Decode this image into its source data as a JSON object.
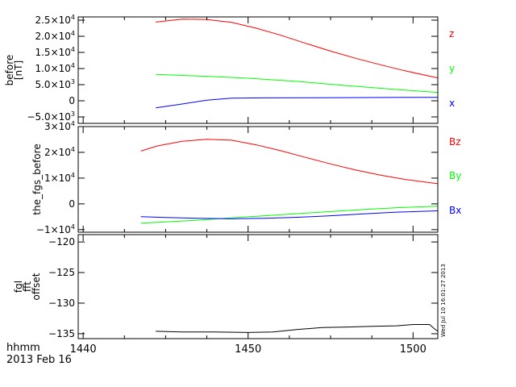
{
  "chart_data": [
    {
      "type": "line",
      "ylabel_lines": [
        "before",
        "[nT]"
      ],
      "ylim": [
        -7000,
        26000
      ],
      "yticks": [
        {
          "value": 25000,
          "label": "2.5×10",
          "exp": "4"
        },
        {
          "value": 20000,
          "label": "2.0×10",
          "exp": "4"
        },
        {
          "value": 15000,
          "label": "1.5×10",
          "exp": "4"
        },
        {
          "value": 10000,
          "label": "1.0×10",
          "exp": "4"
        },
        {
          "value": 5000,
          "label": "5.0×10",
          "exp": "3"
        },
        {
          "value": 0,
          "label": "0",
          "exp": ""
        },
        {
          "value": -5000,
          "label": "−5.0×10",
          "exp": "3"
        }
      ],
      "series": [
        {
          "name": "z",
          "color": "#ff0000",
          "x": [
            1444.4,
            1446,
            1447.5,
            1449,
            1450.5,
            1452,
            1453.5,
            1455,
            1456.5,
            1458,
            1459.5,
            1461.5
          ],
          "values": [
            24400,
            25300,
            25200,
            24300,
            22500,
            20300,
            17800,
            15400,
            13200,
            11200,
            9300,
            7100
          ]
        },
        {
          "name": "y",
          "color": "#00ff00",
          "x": [
            1444.4,
            1447,
            1450,
            1453,
            1456,
            1459,
            1461.5
          ],
          "values": [
            8200,
            7700,
            7000,
            6000,
            4700,
            3500,
            2600
          ]
        },
        {
          "name": "x",
          "color": "#0000ff",
          "x": [
            1444.4,
            1446,
            1447.5,
            1449,
            1451,
            1454,
            1457,
            1460,
            1461.5
          ],
          "values": [
            -2200,
            -1000,
            200,
            800,
            900,
            950,
            1000,
            1050,
            1050
          ]
        }
      ]
    },
    {
      "type": "line",
      "ylabel": "the_fgs_before",
      "ylim": [
        -11000,
        30000
      ],
      "yticks": [
        {
          "value": 30000,
          "label": "3×10",
          "exp": "4"
        },
        {
          "value": 20000,
          "label": "2×10",
          "exp": "4"
        },
        {
          "value": 10000,
          "label": "1×10",
          "exp": "4"
        },
        {
          "value": 0,
          "label": "0",
          "exp": ""
        },
        {
          "value": -10000,
          "label": "−1×10",
          "exp": "4"
        }
      ],
      "series": [
        {
          "name": "Bz",
          "color": "#ff0000",
          "x": [
            1443.5,
            1444.5,
            1446,
            1447.5,
            1449,
            1450.5,
            1452,
            1453.5,
            1455,
            1456.5,
            1458,
            1459.5,
            1461.5
          ],
          "values": [
            20500,
            22500,
            24300,
            25100,
            24700,
            22900,
            20600,
            18000,
            15500,
            13200,
            11200,
            9500,
            7800
          ]
        },
        {
          "name": "By",
          "color": "#00ff00",
          "x": [
            1443.5,
            1445,
            1447,
            1449,
            1451,
            1453,
            1455,
            1457,
            1459,
            1461.5
          ],
          "values": [
            -7500,
            -7000,
            -6300,
            -5400,
            -4600,
            -3800,
            -3000,
            -2200,
            -1500,
            -900
          ]
        },
        {
          "name": "Bx",
          "color": "#0000ff",
          "x": [
            1443.5,
            1445,
            1447,
            1449,
            1451,
            1453,
            1455,
            1457,
            1459,
            1461.5
          ],
          "values": [
            -5000,
            -5300,
            -5600,
            -5800,
            -5600,
            -5200,
            -4600,
            -3900,
            -3200,
            -2700
          ]
        }
      ]
    },
    {
      "type": "line",
      "ylabel_lines": [
        "fgl",
        "fft",
        "offset"
      ],
      "ylim": [
        -135.8,
        -118.8
      ],
      "yticks": [
        {
          "value": -120,
          "label": "−120",
          "exp": ""
        },
        {
          "value": -125,
          "label": "−125",
          "exp": ""
        },
        {
          "value": -130,
          "label": "−130",
          "exp": ""
        },
        {
          "value": -135,
          "label": "−135",
          "exp": ""
        }
      ],
      "series": [
        {
          "name": "",
          "color": "#000000",
          "x": [
            1444.4,
            1446,
            1448,
            1450,
            1451.5,
            1453,
            1454.5,
            1456,
            1457.5,
            1459,
            1460,
            1461,
            1461.3,
            1461.5
          ],
          "values": [
            -134.6,
            -134.7,
            -134.7,
            -134.8,
            -134.7,
            -134.3,
            -134.0,
            -133.9,
            -133.8,
            -133.7,
            -133.5,
            -133.5,
            -134.2,
            -134.6
          ]
        }
      ]
    }
  ],
  "x_axis": {
    "xlim": [
      1439.7,
      1461.5
    ],
    "major_ticks": [
      1440,
      1450,
      1460
    ],
    "major_labels": [
      "1440",
      "1450",
      "1500"
    ],
    "row1_label": "hhmm",
    "row2_label": "2013 Feb 16"
  },
  "timestamp": "Wed Jul 10 16:01:27 2013"
}
